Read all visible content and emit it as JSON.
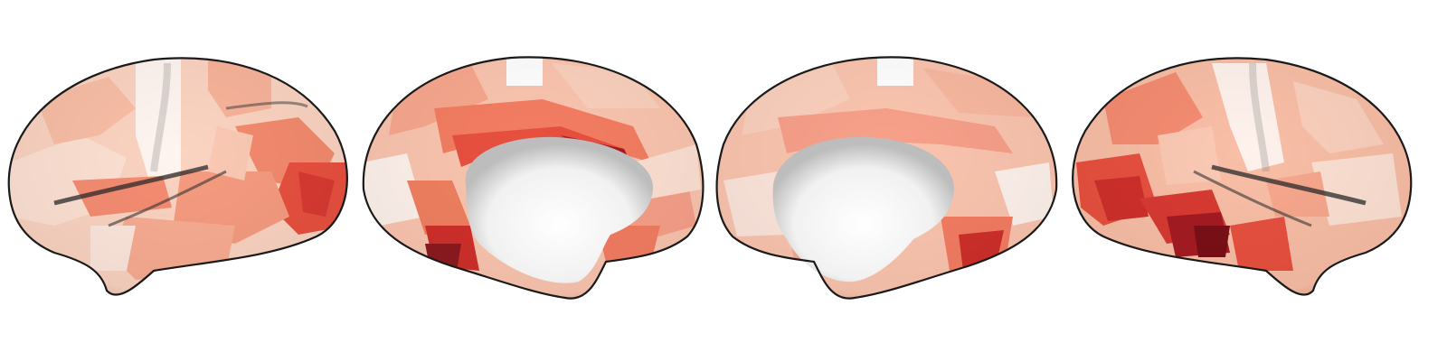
{
  "figure": {
    "views": [
      {
        "id": "left-lateral",
        "hemisphere": "left",
        "view": "lateral"
      },
      {
        "id": "left-medial",
        "hemisphere": "left",
        "view": "medial"
      },
      {
        "id": "right-medial",
        "hemisphere": "right",
        "view": "medial"
      },
      {
        "id": "right-lateral",
        "hemisphere": "right",
        "view": "lateral"
      }
    ],
    "colormap": [
      "#fff2ec",
      "#fcd5c3",
      "#fbb59d",
      "#f89a80",
      "#f4785f",
      "#e8503f",
      "#cf2f2b",
      "#a51b22",
      "#7a0f17"
    ],
    "outline_color": "#1a1a1a",
    "background": "#ffffff"
  }
}
